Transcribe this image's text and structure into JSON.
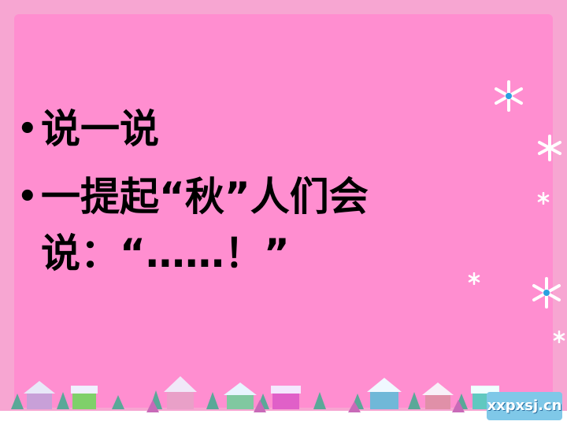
{
  "slide": {
    "bullets": [
      {
        "text": "说一说"
      },
      {
        "text": "一提起“秋”人们会说：“……！”"
      }
    ]
  },
  "watermark": "xxpxsj.cn",
  "colors": {
    "background": "#f7a6d2",
    "panel": "#ff8ed0",
    "text": "#000000",
    "snow": "#ffffff"
  },
  "icons": [
    "snowflake-icon",
    "house-icon",
    "tree-icon"
  ]
}
